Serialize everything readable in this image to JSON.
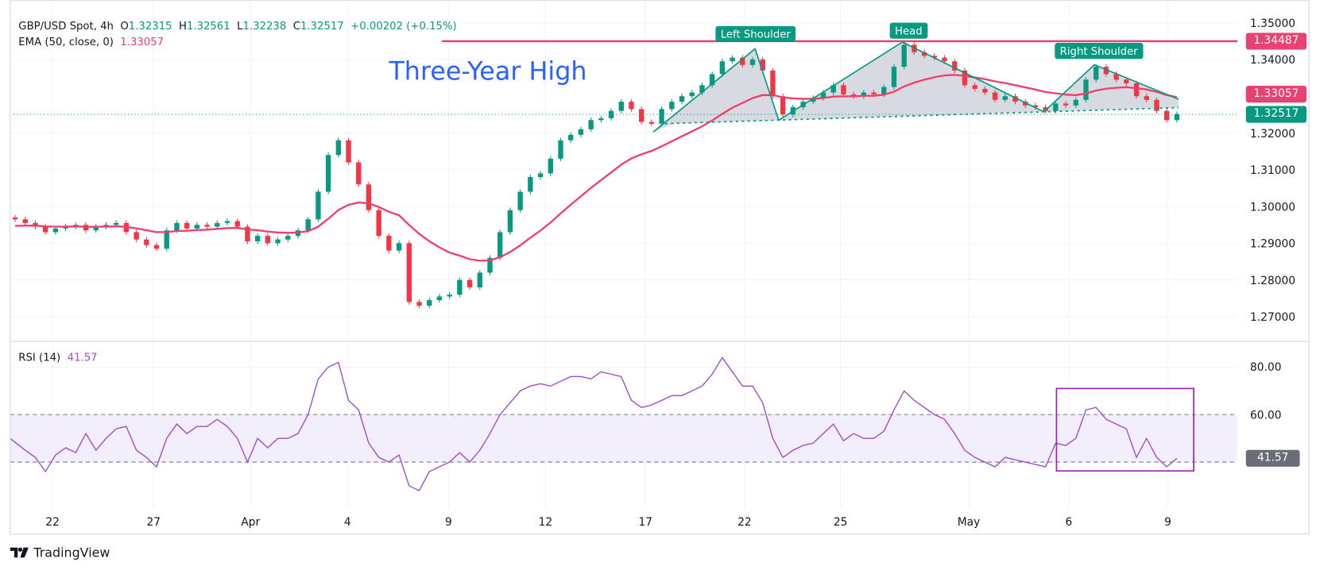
{
  "header": {
    "symbol": "GBP/USD Spot, 4h",
    "o_label": "O",
    "o": "1.32315",
    "h_label": "H",
    "h": "1.32561",
    "l_label": "L",
    "l": "1.32238",
    "c_label": "C",
    "c": "1.32517",
    "change": "+0.00202 (+0.15%)"
  },
  "ema": {
    "label": "EMA (50, close, 0)",
    "value": "1.33057"
  },
  "rsi": {
    "label": "RSI (14)",
    "value": "41.57"
  },
  "annotations": {
    "title": "Three-Year High",
    "left_shoulder": "Left Shoulder",
    "head": "Head",
    "right_shoulder": "Right Shoulder"
  },
  "price_axis": {
    "ticks": [
      "1.35000",
      "1.34000",
      "1.32000",
      "1.31000",
      "1.30000",
      "1.29000",
      "1.28000",
      "1.27000"
    ],
    "resistance_tag": "1.34487",
    "ema_tag": "1.33057",
    "last_tag": "1.32517"
  },
  "rsi_axis": {
    "ticks": [
      "80.00",
      "60.00"
    ],
    "value_tag": "41.57"
  },
  "time_axis": [
    {
      "label": "22",
      "index": 3.7
    },
    {
      "label": "27",
      "index": 13.7
    },
    {
      "label": "Apr",
      "index": 23.3
    },
    {
      "label": "4",
      "index": 32.9
    },
    {
      "label": "9",
      "index": 42.9
    },
    {
      "label": "12",
      "index": 52.5
    },
    {
      "label": "17",
      "index": 62.4
    },
    {
      "label": "22",
      "index": 72.2
    },
    {
      "label": "25",
      "index": 81.7
    },
    {
      "label": "May",
      "index": 94.4
    },
    {
      "label": "6",
      "index": 104.3
    },
    {
      "label": "9",
      "index": 114.1
    }
  ],
  "logo": "TradingView",
  "colors": {
    "up": "#089981",
    "down": "#f23645",
    "ema": "#f23d6d",
    "resistance": "#e94272",
    "rsi": "#9c4dcc",
    "annotation_text": "#2962ff",
    "rsi_box": "#9c27b0"
  },
  "chart_data": {
    "type": "candlestick",
    "title": "GBP/USD Spot, 4h",
    "ylim": [
      1.265,
      1.35
    ],
    "resistance": 1.34487,
    "last_close": 1.32517,
    "first_open": 1.297,
    "closes": [
      1.2965,
      1.2955,
      1.2945,
      1.293,
      1.294,
      1.2945,
      1.295,
      1.2935,
      1.2945,
      1.295,
      1.2955,
      1.293,
      1.291,
      1.2895,
      1.2885,
      1.2935,
      1.2955,
      1.294,
      1.295,
      1.2945,
      1.2955,
      1.296,
      1.2945,
      1.2905,
      1.292,
      1.29,
      1.291,
      1.292,
      1.2935,
      1.2965,
      1.304,
      1.314,
      1.318,
      1.312,
      1.306,
      1.299,
      1.292,
      1.288,
      1.29,
      1.274,
      1.273,
      1.2745,
      1.2755,
      1.276,
      1.28,
      1.278,
      1.282,
      1.286,
      1.293,
      1.299,
      1.304,
      1.308,
      1.309,
      1.313,
      1.318,
      1.3195,
      1.321,
      1.3235,
      1.324,
      1.326,
      1.3285,
      1.3265,
      1.323,
      1.3225,
      1.3265,
      1.3285,
      1.33,
      1.331,
      1.333,
      1.336,
      1.3395,
      1.3405,
      1.3385,
      1.34,
      1.337,
      1.33,
      1.325,
      1.327,
      1.3285,
      1.3295,
      1.331,
      1.333,
      1.3305,
      1.33,
      1.331,
      1.3305,
      1.3325,
      1.338,
      1.344,
      1.342,
      1.341,
      1.3405,
      1.3395,
      1.337,
      1.333,
      1.332,
      1.331,
      1.329,
      1.33,
      1.3285,
      1.3275,
      1.327,
      1.326,
      1.328,
      1.3275,
      1.329,
      1.3345,
      1.338,
      1.336,
      1.3345,
      1.3335,
      1.33,
      1.329,
      1.326,
      1.3235,
      1.32517
    ],
    "ema_period": 50,
    "rsi_period": 14,
    "rsi_ylim": [
      20,
      90
    ],
    "rsi_bands": [
      40,
      60
    ],
    "rsi_values": [
      50,
      45,
      42,
      36,
      43,
      46,
      44,
      52,
      45,
      50,
      54,
      55,
      45,
      42,
      38,
      50,
      56,
      52,
      55,
      55,
      58,
      55,
      50,
      40,
      50,
      46,
      50,
      50,
      52,
      60,
      75,
      80,
      82,
      66,
      62,
      48,
      42,
      40,
      43,
      30,
      28,
      36,
      38,
      40,
      44,
      40,
      45,
      52,
      60,
      65,
      70,
      72,
      73,
      72,
      74,
      76,
      76,
      75,
      78,
      77,
      76,
      66,
      63,
      64,
      66,
      68,
      68,
      70,
      72,
      77,
      84,
      78,
      72,
      72,
      65,
      50,
      42,
      45,
      47,
      48,
      52,
      56,
      49,
      52,
      50,
      50,
      53,
      62,
      70,
      66,
      63,
      60,
      58,
      52,
      45,
      42,
      40,
      38,
      42,
      41,
      40,
      39,
      38,
      48,
      47,
      50,
      62,
      63,
      58,
      56,
      54,
      42,
      50,
      42,
      38,
      41.57
    ]
  }
}
